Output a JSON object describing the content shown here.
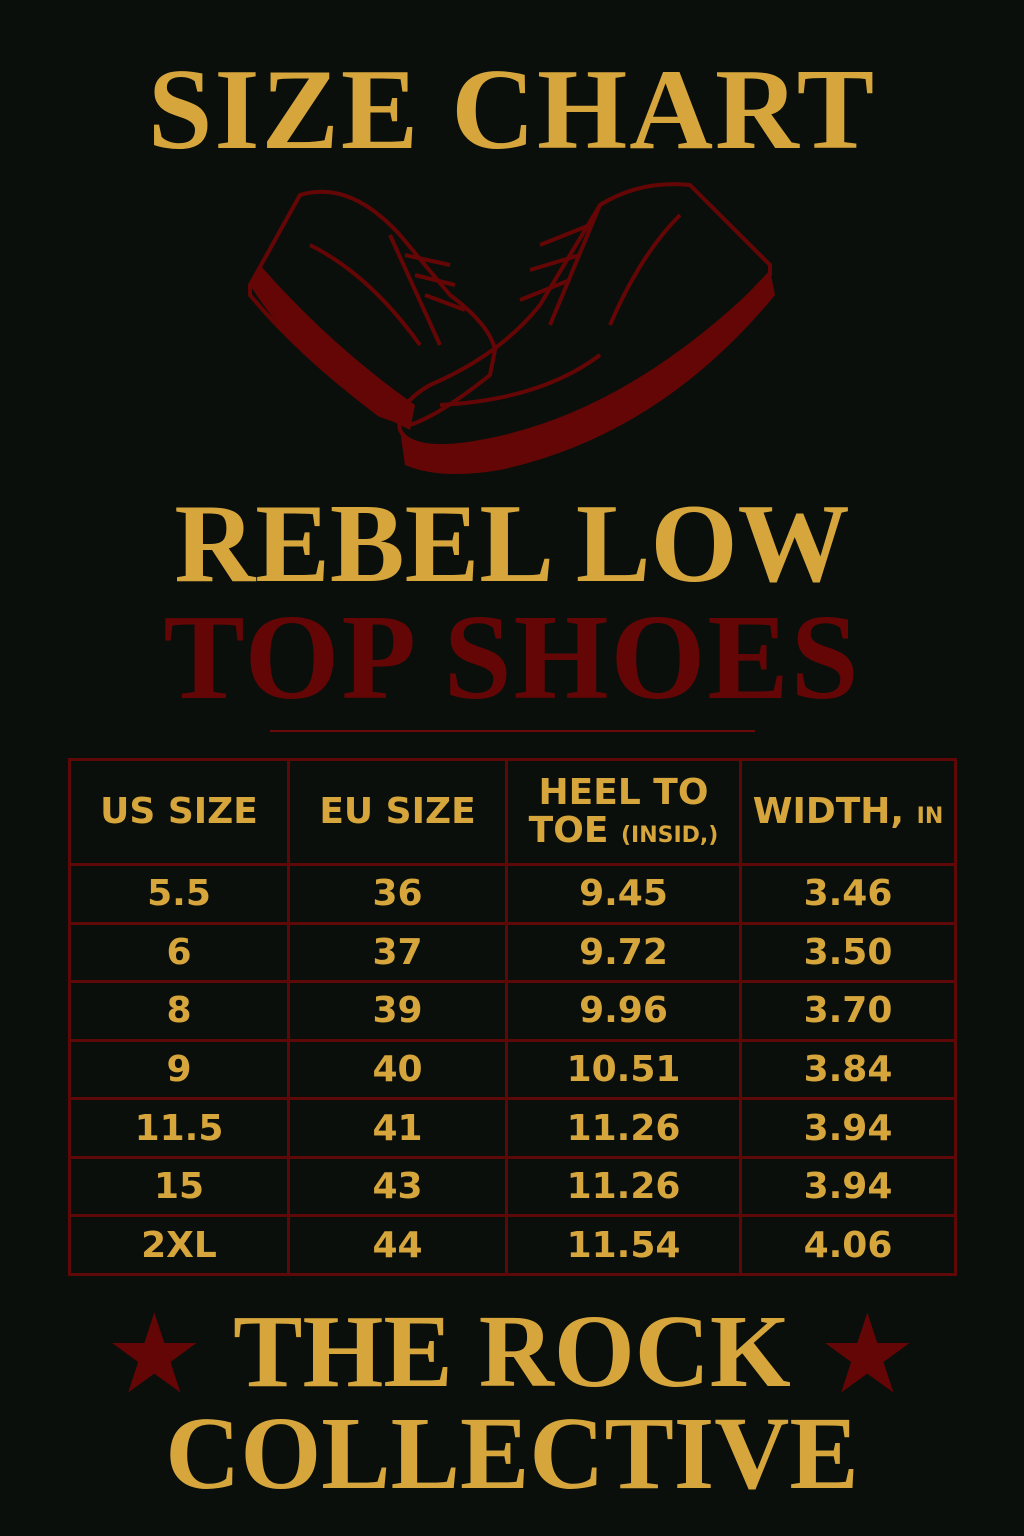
{
  "title": "SIZE CHART",
  "product": {
    "line1": "REBEL LOW",
    "line2": "TOP SHOES"
  },
  "colors": {
    "background": "#0a0f0b",
    "gold": "#d6a63c",
    "dark_red": "#650606"
  },
  "table": {
    "headers": [
      {
        "main": "US SIZE",
        "sub": ""
      },
      {
        "main": "EU SIZE",
        "sub": ""
      },
      {
        "main": "HEEL TO TOE",
        "sub": "(INSID,)"
      },
      {
        "main": "WIDTH,",
        "sub": "IN"
      }
    ],
    "rows": [
      [
        "5.5",
        "36",
        "9.45",
        "3.46"
      ],
      [
        "6",
        "37",
        "9.72",
        "3.50"
      ],
      [
        "8",
        "39",
        "9.96",
        "3.70"
      ],
      [
        "9",
        "40",
        "10.51",
        "3.84"
      ],
      [
        "11.5",
        "41",
        "11.26",
        "3.94"
      ],
      [
        "15",
        "43",
        "11.26",
        "3.94"
      ],
      [
        "2XL",
        "44",
        "11.54",
        "4.06"
      ]
    ]
  },
  "footer": {
    "line1": "THE ROCK",
    "line2": "COLLECTIVE",
    "decoration_icon": "star-icon"
  },
  "illustration_icon": "sneakers-icon"
}
